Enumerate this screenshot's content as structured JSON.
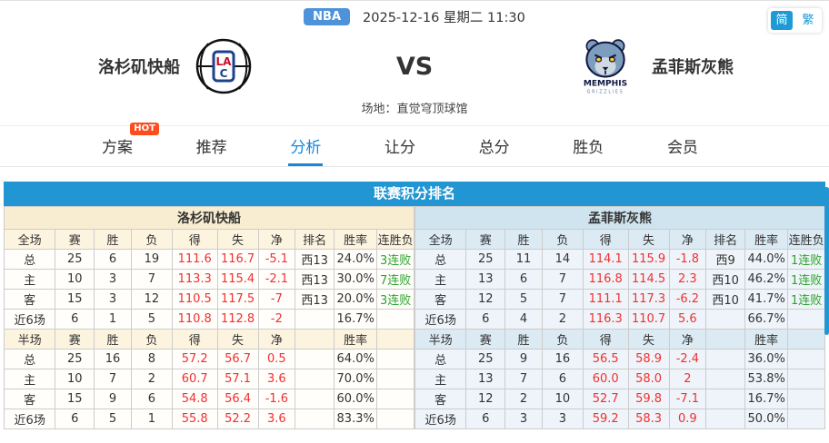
{
  "header": {
    "league_badge": "NBA",
    "datetime": "2025-12-16 星期二 11:30",
    "lang_simplified": "简",
    "lang_traditional": "繁"
  },
  "match": {
    "home_name": "洛杉矶快船",
    "away_name": "孟菲斯灰熊",
    "vs": "VS",
    "venue": "场地：直觉穹顶球馆",
    "home_logo_monogram_top": "LA",
    "home_logo_monogram_bottom": "C",
    "away_logo_text1": "MEMPHIS",
    "away_logo_text2": "GRIZZLIES"
  },
  "tabs": [
    {
      "label": "方案",
      "badge": "HOT"
    },
    {
      "label": "推荐"
    },
    {
      "label": "分析",
      "active": true
    },
    {
      "label": "让分"
    },
    {
      "label": "总分"
    },
    {
      "label": "胜负"
    },
    {
      "label": "会员"
    }
  ],
  "standings": {
    "title": "联赛积分排名",
    "columns_full": [
      "全场",
      "赛",
      "胜",
      "负",
      "得",
      "失",
      "净",
      "排名",
      "胜率",
      "连胜负"
    ],
    "columns_half": [
      "半场",
      "赛",
      "胜",
      "负",
      "得",
      "失",
      "净",
      "",
      "胜率",
      ""
    ],
    "left": {
      "team": "洛杉矶快船",
      "full_rows": [
        [
          "总",
          "25",
          "6",
          "19",
          "111.6",
          "116.7",
          "-5.1",
          "西13",
          "24.0%",
          "3连败"
        ],
        [
          "主",
          "10",
          "3",
          "7",
          "113.3",
          "115.4",
          "-2.1",
          "西13",
          "30.0%",
          "7连败"
        ],
        [
          "客",
          "15",
          "3",
          "12",
          "110.5",
          "117.5",
          "-7",
          "西13",
          "20.0%",
          "3连败"
        ],
        [
          "近6场",
          "6",
          "1",
          "5",
          "110.8",
          "112.8",
          "-2",
          "",
          "16.7%",
          ""
        ]
      ],
      "half_rows": [
        [
          "总",
          "25",
          "16",
          "8",
          "57.2",
          "56.7",
          "0.5",
          "",
          "64.0%",
          ""
        ],
        [
          "主",
          "10",
          "7",
          "2",
          "60.7",
          "57.1",
          "3.6",
          "",
          "70.0%",
          ""
        ],
        [
          "客",
          "15",
          "9",
          "6",
          "54.8",
          "56.4",
          "-1.6",
          "",
          "60.0%",
          ""
        ],
        [
          "近6场",
          "6",
          "5",
          "1",
          "55.8",
          "52.2",
          "3.6",
          "",
          "83.3%",
          ""
        ]
      ]
    },
    "right": {
      "team": "孟菲斯灰熊",
      "full_rows": [
        [
          "总",
          "25",
          "11",
          "14",
          "114.1",
          "115.9",
          "-1.8",
          "西9",
          "44.0%",
          "1连败"
        ],
        [
          "主",
          "13",
          "6",
          "7",
          "116.8",
          "114.5",
          "2.3",
          "西10",
          "46.2%",
          "1连败"
        ],
        [
          "客",
          "12",
          "5",
          "7",
          "111.1",
          "117.3",
          "-6.2",
          "西10",
          "41.7%",
          "1连败"
        ],
        [
          "近6场",
          "6",
          "4",
          "2",
          "116.3",
          "110.7",
          "5.6",
          "",
          "66.7%",
          ""
        ]
      ],
      "half_rows": [
        [
          "总",
          "25",
          "9",
          "16",
          "56.5",
          "58.9",
          "-2.4",
          "",
          "36.0%",
          ""
        ],
        [
          "主",
          "13",
          "7",
          "6",
          "60.0",
          "58.0",
          "2",
          "",
          "53.8%",
          ""
        ],
        [
          "客",
          "12",
          "2",
          "10",
          "52.7",
          "59.8",
          "-7.1",
          "",
          "16.7%",
          ""
        ],
        [
          "近6场",
          "6",
          "3",
          "3",
          "59.2",
          "58.3",
          "0.9",
          "",
          "50.0%",
          ""
        ]
      ]
    }
  },
  "colors": {
    "accent_blue": "#2196d3",
    "active_tab_blue": "#1787dd",
    "badge_blue": "#4e93d9",
    "hot_orange": "#fd4c1e",
    "stat_red": "#f23030",
    "streak_green": "#2ea52e",
    "left_cream": "#f8ecd1",
    "right_lightblue": "#cfe4ef"
  }
}
